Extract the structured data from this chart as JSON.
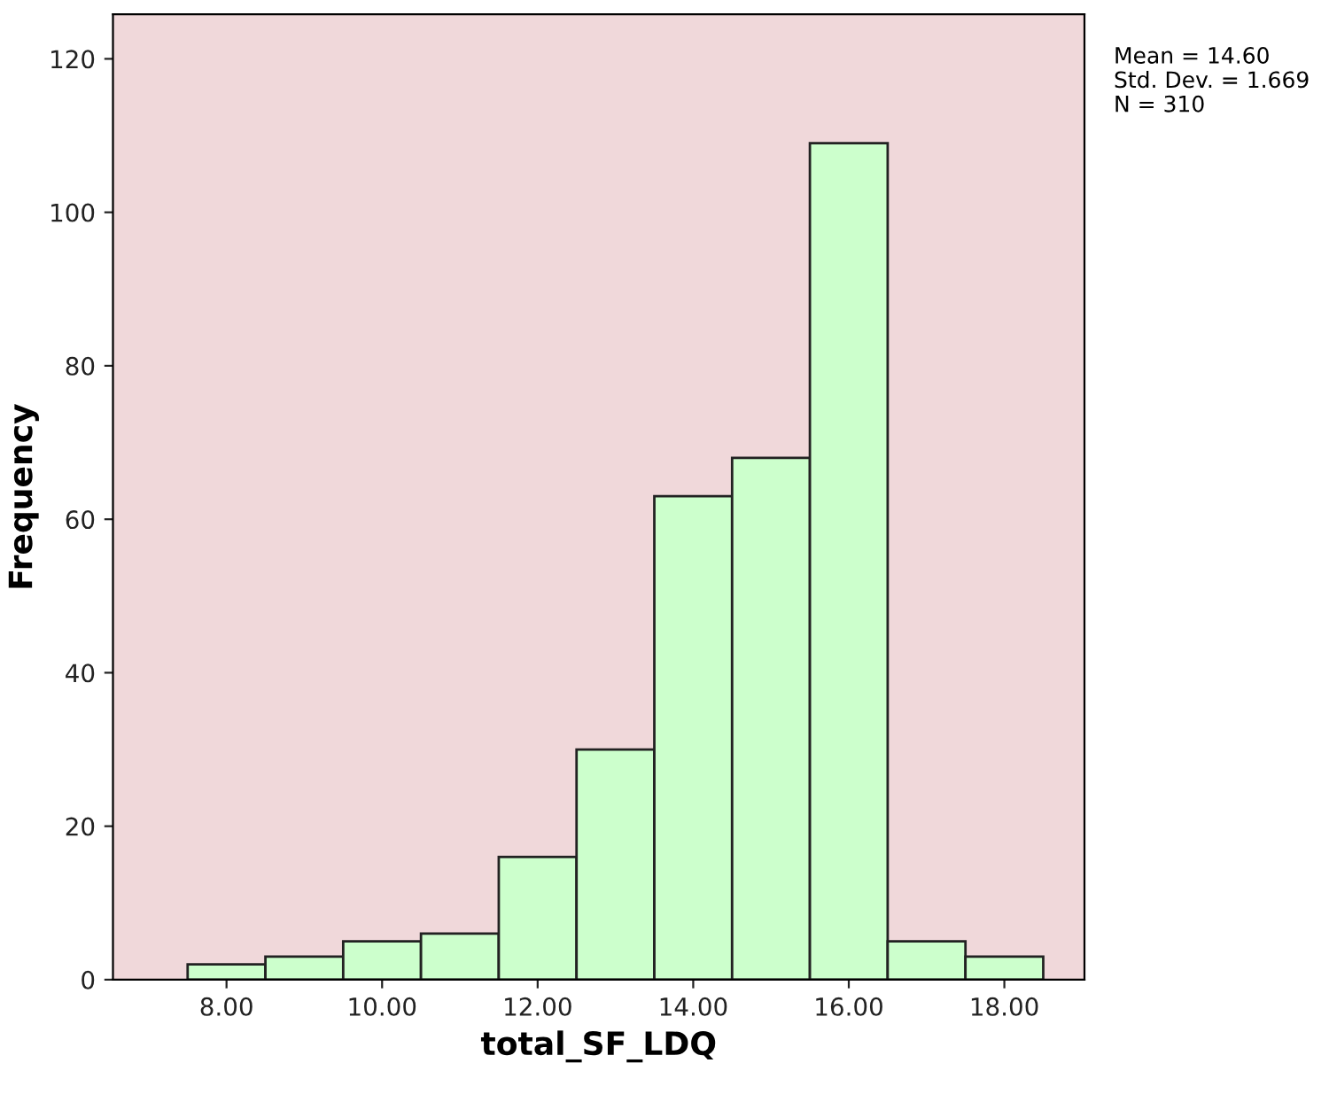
{
  "chart_data": {
    "type": "histogram",
    "xlabel": "total_SF_LDQ",
    "ylabel": "Frequency",
    "bins": [
      7.5,
      8.5,
      9.5,
      10.5,
      11.5,
      12.5,
      13.5,
      14.5,
      15.5,
      16.5,
      17.5,
      18.5
    ],
    "values": [
      2,
      3,
      5,
      6,
      16,
      30,
      63,
      68,
      109,
      5,
      3
    ],
    "color": "#ccffcc",
    "xlim": [
      6.54,
      19.03
    ],
    "xticks": [
      {
        "value": 8,
        "label": "8.00"
      },
      {
        "value": 10,
        "label": "10.00"
      },
      {
        "value": 12,
        "label": "12.00"
      },
      {
        "value": 14,
        "label": "14.00"
      },
      {
        "value": 16,
        "label": "16.00"
      },
      {
        "value": 18,
        "label": "18.00"
      }
    ],
    "ylim": [
      0,
      125.8
    ],
    "yticks": [
      0,
      20,
      40,
      60,
      80,
      100,
      120
    ],
    "grid": false,
    "annotations": [
      "Mean = 14.60",
      "Std. Dev. = 1.669",
      "N = 310"
    ]
  }
}
